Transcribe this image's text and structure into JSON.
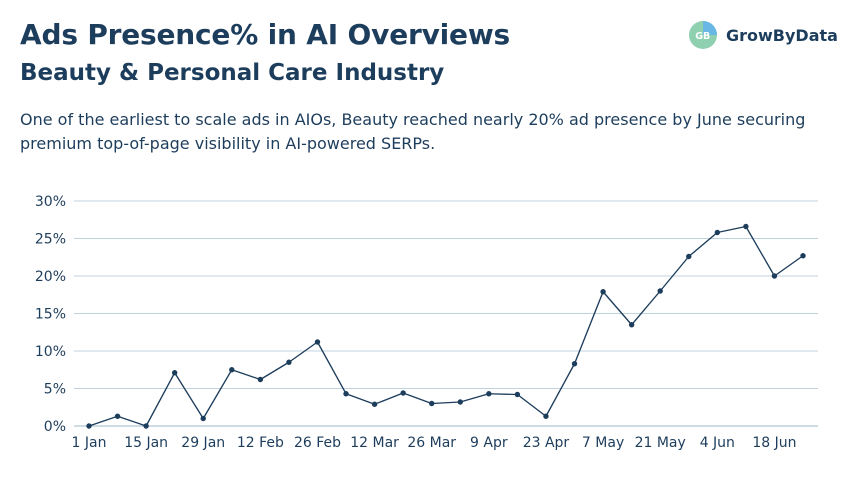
{
  "header": {
    "title": "Ads Presence% in AI Overviews",
    "subtitle": "Beauty & Personal Care Industry",
    "description": "One of the earliest to scale ads in AIOs, Beauty reached nearly 20% ad presence by June securing premium top-of-page visibility in AI-powered SERPs."
  },
  "brand": {
    "name": "GrowByData",
    "colors": {
      "primary": "#1d3d5c",
      "logo_green": "#7fc6a4",
      "logo_blue": "#5aa7d8",
      "grid": "#bfd3df"
    }
  },
  "chart_data": {
    "type": "line",
    "title": "",
    "xlabel": "",
    "ylabel": "",
    "ylim": [
      0,
      30
    ],
    "yticks": [
      "0%",
      "5%",
      "10%",
      "15%",
      "20%",
      "25%",
      "30%"
    ],
    "xticks": [
      {
        "label": "1 Jan",
        "index": 0
      },
      {
        "label": "15 Jan",
        "index": 2
      },
      {
        "label": "29 Jan",
        "index": 4
      },
      {
        "label": "12 Feb",
        "index": 6
      },
      {
        "label": "26 Feb",
        "index": 8
      },
      {
        "label": "12 Mar",
        "index": 10
      },
      {
        "label": "26 Mar",
        "index": 12
      },
      {
        "label": "9 Apr",
        "index": 14
      },
      {
        "label": "23 Apr",
        "index": 16
      },
      {
        "label": "7 May",
        "index": 18
      },
      {
        "label": "21 May",
        "index": 20
      },
      {
        "label": "4 Jun",
        "index": 22
      },
      {
        "label": "18 Jun",
        "index": 24
      }
    ],
    "grid": "horizontal",
    "series": [
      {
        "values": [
          0.0,
          1.3,
          0.0,
          7.1,
          1.0,
          7.5,
          6.2,
          8.5,
          11.2,
          4.3,
          2.9,
          4.4,
          3.0,
          3.2,
          4.3,
          4.2,
          1.3,
          8.3,
          17.9,
          13.5,
          18.0,
          22.6,
          25.8,
          26.6,
          20.0,
          22.7
        ],
        "color": "#1d3d5c"
      }
    ]
  }
}
